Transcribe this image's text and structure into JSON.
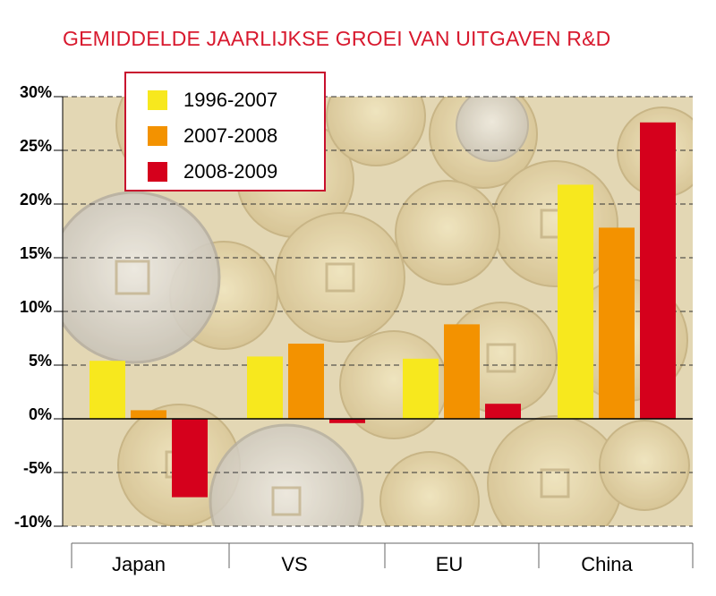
{
  "chart_data": {
    "type": "bar",
    "title": "GEMIDDELDE JAARLIJKSE GROEI VAN UITGAVEN R&D",
    "categories": [
      "Japan",
      "VS",
      "EU",
      "China"
    ],
    "series": [
      {
        "name": "1996-2007",
        "color": "#f7e81e",
        "values": [
          5.4,
          5.8,
          5.6,
          21.8
        ]
      },
      {
        "name": "2007-2008",
        "color": "#f39200",
        "values": [
          0.8,
          7.0,
          8.8,
          17.8
        ]
      },
      {
        "name": "2008-2009",
        "color": "#d5001c",
        "values": [
          -7.3,
          -0.4,
          1.4,
          27.6
        ]
      }
    ],
    "yticks": [
      "30%",
      "25%",
      "20%",
      "15%",
      "10%",
      "5%",
      "0%",
      "-5%",
      "-10%"
    ],
    "ylim": [
      -10,
      30
    ],
    "grid": true,
    "legend_position": "top-left"
  }
}
